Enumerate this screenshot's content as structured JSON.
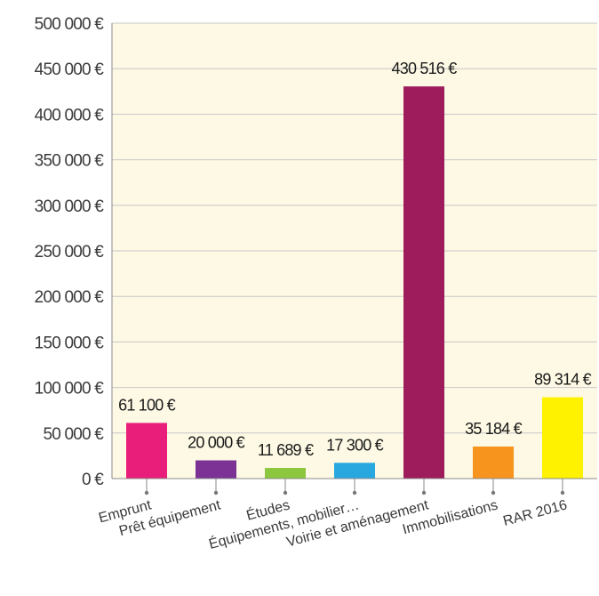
{
  "chart_data": {
    "type": "bar",
    "categories": [
      "Emprunt",
      "Prêt équipement",
      "Études",
      "Équipements, mobilier…",
      "Voirie et aménagement",
      "Immobilisations",
      "RAR 2016"
    ],
    "values": [
      61100,
      20000,
      11689,
      17300,
      430516,
      35184,
      89314
    ],
    "data_labels": [
      "61 100 €",
      "20 000 €",
      "11 689 €",
      "17 300 €",
      "430 516 €",
      "35 184 €",
      "89 314 €"
    ],
    "colors": [
      "#e91e7a",
      "#7b3294",
      "#8dc63f",
      "#29a8e0",
      "#9e1b5c",
      "#f7941d",
      "#fff200"
    ],
    "ylim": [
      0,
      500000
    ],
    "yticks": [
      0,
      50000,
      100000,
      150000,
      200000,
      250000,
      300000,
      350000,
      400000,
      450000,
      500000
    ],
    "ytick_labels": [
      "0 €",
      "50 000 €",
      "100 000 €",
      "150 000 €",
      "200 000 €",
      "250 000 €",
      "300 000 €",
      "350 000 €",
      "400 000 €",
      "450 000 €",
      "500 000 €"
    ],
    "plot_background": "#fdf9e4",
    "grid": true,
    "title": "",
    "xlabel": "",
    "ylabel": ""
  }
}
